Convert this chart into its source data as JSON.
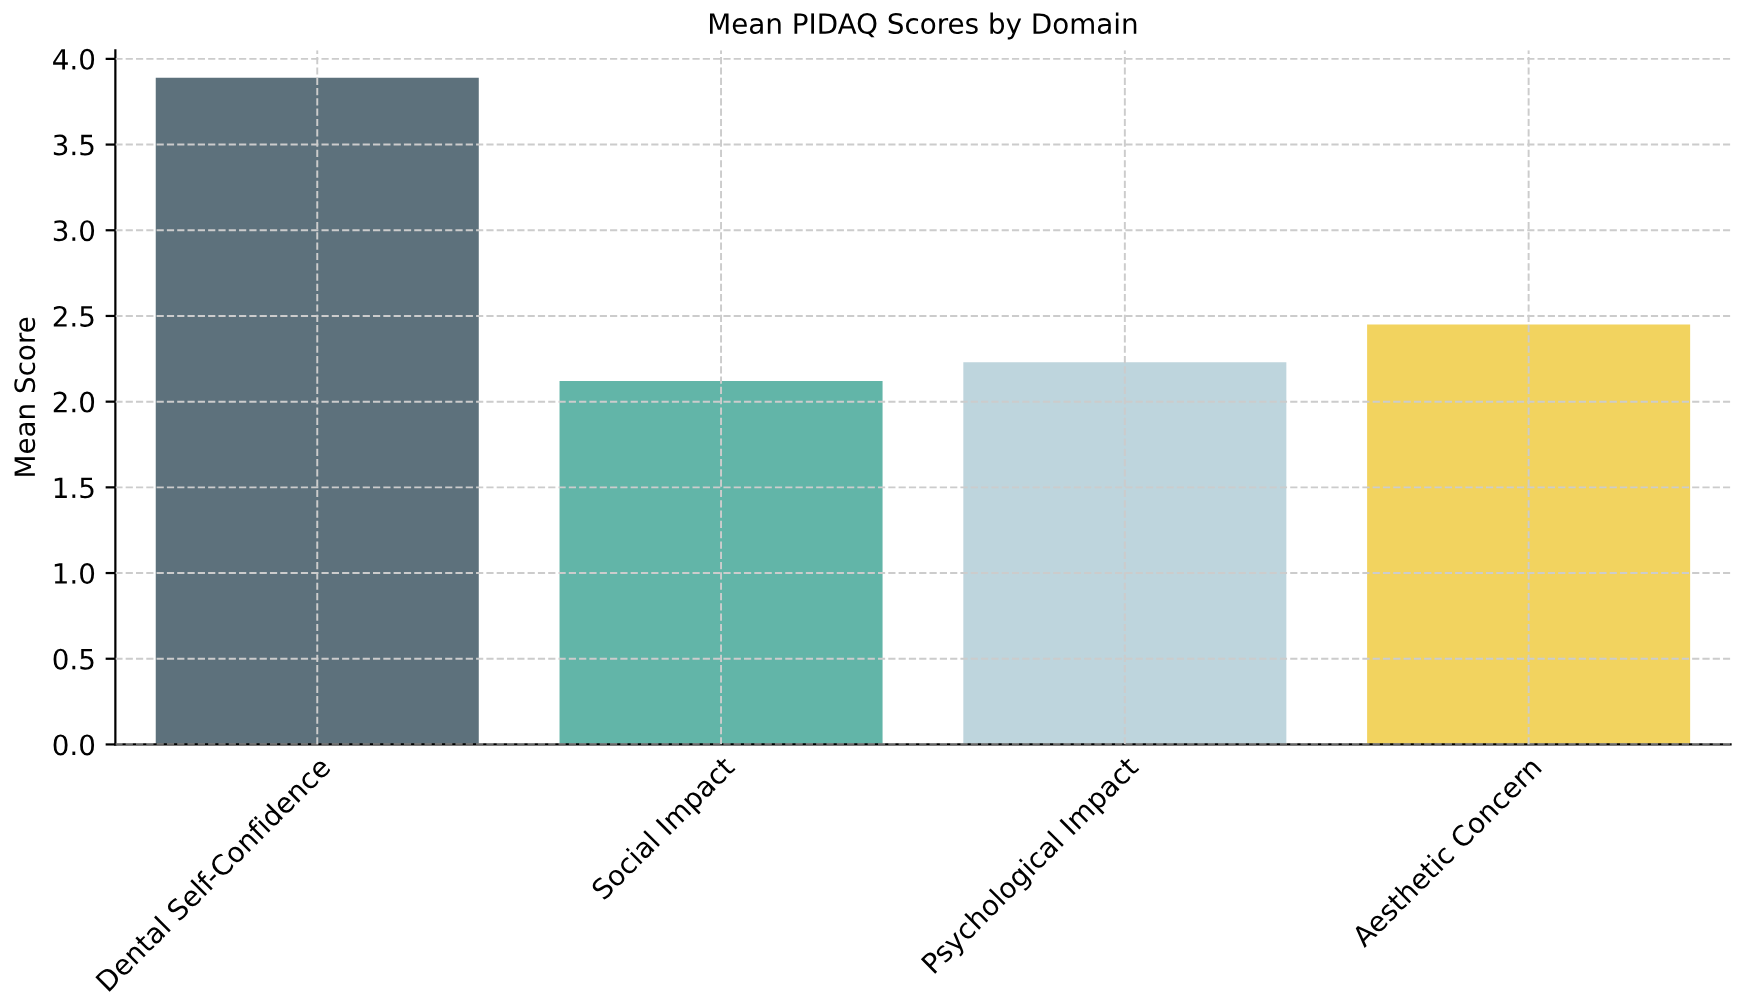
{
  "chart_data": {
    "type": "bar",
    "title": "Mean PIDAQ Scores by Domain",
    "ylabel": "Mean Score",
    "categories": [
      "Dental Self-Confidence",
      "Social Impact",
      "Psychological Impact",
      "Aesthetic Concern"
    ],
    "values": [
      3.89,
      2.12,
      2.23,
      2.45
    ],
    "colors": [
      "#5d717c",
      "#62b5a8",
      "#bed5dd",
      "#f2d35f"
    ],
    "ylim": [
      0,
      4.05
    ],
    "yticks": [
      {
        "value": 0,
        "label": "0.0"
      },
      {
        "value": 0.5,
        "label": "0.5"
      },
      {
        "value": 1,
        "label": "1.0"
      },
      {
        "value": 1.5,
        "label": "1.5"
      },
      {
        "value": 2,
        "label": "2.0"
      },
      {
        "value": 2.5,
        "label": "2.5"
      },
      {
        "value": 3,
        "label": "3.0"
      },
      {
        "value": 3.5,
        "label": "3.5"
      },
      {
        "value": 4,
        "label": "4.0"
      }
    ],
    "grid": true,
    "line_style": "dashed"
  }
}
